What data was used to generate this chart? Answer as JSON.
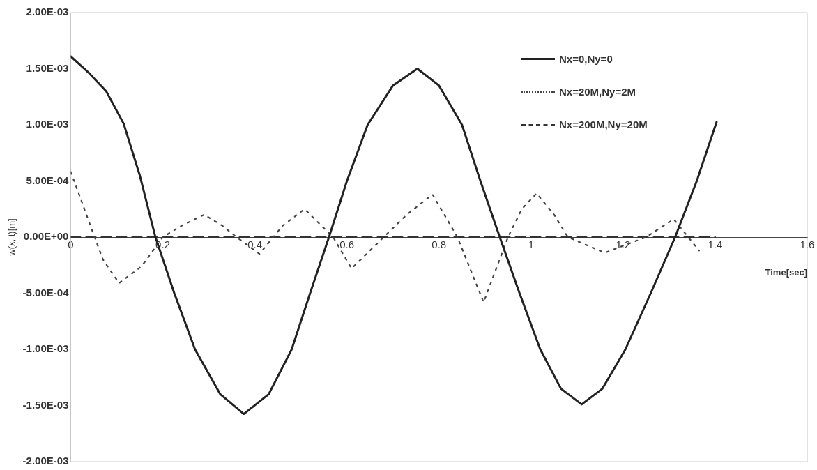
{
  "chart_data": {
    "type": "line",
    "xlabel": "Time[sec]",
    "ylabel": "w(x, t)[m]",
    "xlim": [
      0,
      1.6
    ],
    "xticks": [
      0,
      0.2,
      0.4,
      0.6,
      0.8,
      1,
      1.2,
      1.4,
      1.6
    ],
    "ylim": [
      -0.002,
      0.002
    ],
    "yticks": [
      {
        "value": -0.002,
        "label": "-2.00E-03"
      },
      {
        "value": -0.0015,
        "label": "-1.50E-03"
      },
      {
        "value": -0.001,
        "label": "-1.00E-03"
      },
      {
        "value": -0.0005,
        "label": "-5.00E-04"
      },
      {
        "value": 0,
        "label": "0.00E+00"
      },
      {
        "value": 0.0005,
        "label": "5.00E-04"
      },
      {
        "value": 0.001,
        "label": "1.00E-03"
      },
      {
        "value": 0.0015,
        "label": "1.50E-03"
      },
      {
        "value": 0.002,
        "label": "2.00E-03"
      }
    ],
    "grid": false,
    "legend": "top right",
    "marker": "none",
    "series": [
      {
        "name": "Nx=0,Ny=0",
        "color": "#222222",
        "line_style": "solid",
        "x": [
          0,
          0.04,
          0.077,
          0.115,
          0.15,
          0.184,
          0.225,
          0.27,
          0.325,
          0.376,
          0.43,
          0.48,
          0.52,
          0.561,
          0.6,
          0.645,
          0.7,
          0.753,
          0.8,
          0.85,
          0.89,
          0.932,
          0.975,
          1.02,
          1.065,
          1.11,
          1.155,
          1.205,
          1.26,
          1.313,
          1.36,
          1.403
        ],
        "values": [
          0.00161,
          0.00146,
          0.0013,
          0.00101,
          0.00055,
          0,
          -0.0005,
          -0.001,
          -0.0014,
          -0.001575,
          -0.0014,
          -0.001,
          -0.0005,
          0,
          0.0005,
          0.001,
          0.00135,
          0.0015,
          0.00135,
          0.001,
          0.0005,
          0,
          -0.0005,
          -0.001,
          -0.00135,
          -0.00149,
          -0.00135,
          -0.001,
          -0.0005,
          0,
          0.0005,
          0.001025
        ]
      },
      {
        "name": "Nx=20M,Ny=2M",
        "color": "#444444",
        "line_style": "dotted",
        "x": [
          0,
          0.02,
          0.042,
          0.07,
          0.105,
          0.154,
          0.2,
          0.24,
          0.29,
          0.33,
          0.36,
          0.41,
          0.46,
          0.508,
          0.545,
          0.57,
          0.61,
          0.68,
          0.73,
          0.786,
          0.84,
          0.897,
          0.95,
          0.98,
          1.012,
          1.05,
          1.08,
          1.16,
          1.25,
          1.31,
          1.365
        ],
        "values": [
          0.00058,
          0.00036,
          0.00011,
          -0.0002,
          -0.00041,
          -0.00026,
          0,
          0.0001,
          0.0002,
          0.0001,
          0,
          -0.00015,
          0.0001,
          0.00025,
          0.0001,
          0,
          -0.00028,
          0,
          0.0002,
          0.00038,
          0,
          -0.00058,
          0,
          0.00025,
          0.00039,
          0.0002,
          0,
          -0.00014,
          0,
          0.00016,
          -0.00012
        ]
      },
      {
        "name": "Nx=200M,Ny=20M",
        "color": "#333333",
        "line_style": "dashed",
        "x": [
          0,
          0.2,
          0.4,
          0.6,
          0.8,
          1,
          1.2,
          1.4
        ],
        "values": [
          0,
          0,
          0,
          0,
          0,
          0,
          0,
          0
        ]
      }
    ]
  }
}
